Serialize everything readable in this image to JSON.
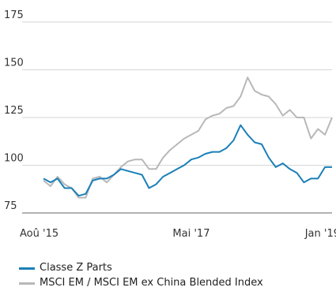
{
  "chart_data": {
    "type": "line",
    "title": "",
    "xlabel": "",
    "ylabel": "",
    "ylim": [
      75,
      175
    ],
    "yticks": [
      175,
      150,
      125,
      100,
      75
    ],
    "x_tick_labels": [
      "Aoû '15",
      "Mai '17",
      "Jan '19"
    ],
    "x": [
      "2015-08",
      "2015-09",
      "2015-10",
      "2015-11",
      "2015-12",
      "2016-01",
      "2016-02",
      "2016-03",
      "2016-04",
      "2016-05",
      "2016-06",
      "2016-07",
      "2016-08",
      "2016-09",
      "2016-10",
      "2016-11",
      "2016-12",
      "2017-01",
      "2017-02",
      "2017-03",
      "2017-04",
      "2017-05",
      "2017-06",
      "2017-07",
      "2017-08",
      "2017-09",
      "2017-10",
      "2017-11",
      "2017-12",
      "2018-01",
      "2018-02",
      "2018-03",
      "2018-04",
      "2018-05",
      "2018-06",
      "2018-07",
      "2018-08",
      "2018-09",
      "2018-10",
      "2018-11",
      "2018-12",
      "2019-01"
    ],
    "series": [
      {
        "name": "MSCI EM / MSCI EM ex China Blended Index",
        "color": "#b8b8b8",
        "values": [
          92,
          89,
          94,
          90,
          88,
          83,
          83,
          93,
          94,
          91,
          95,
          99,
          102,
          103,
          103,
          98,
          98,
          104,
          108,
          111,
          114,
          116,
          118,
          124,
          126,
          127,
          130,
          131,
          136,
          146,
          139,
          137,
          136,
          132,
          126,
          129,
          125,
          125,
          114,
          119,
          116,
          125
        ]
      },
      {
        "name": "Classe Z Parts",
        "color": "#1a7fb8",
        "values": [
          93,
          91,
          93,
          88,
          88,
          84,
          85,
          92,
          93,
          93,
          95,
          98,
          97,
          96,
          95,
          88,
          90,
          94,
          96,
          98,
          100,
          103,
          104,
          106,
          107,
          107,
          109,
          113,
          121,
          116,
          112,
          111,
          104,
          99,
          101,
          98,
          96,
          91,
          93,
          93,
          99,
          99
        ]
      }
    ]
  }
}
